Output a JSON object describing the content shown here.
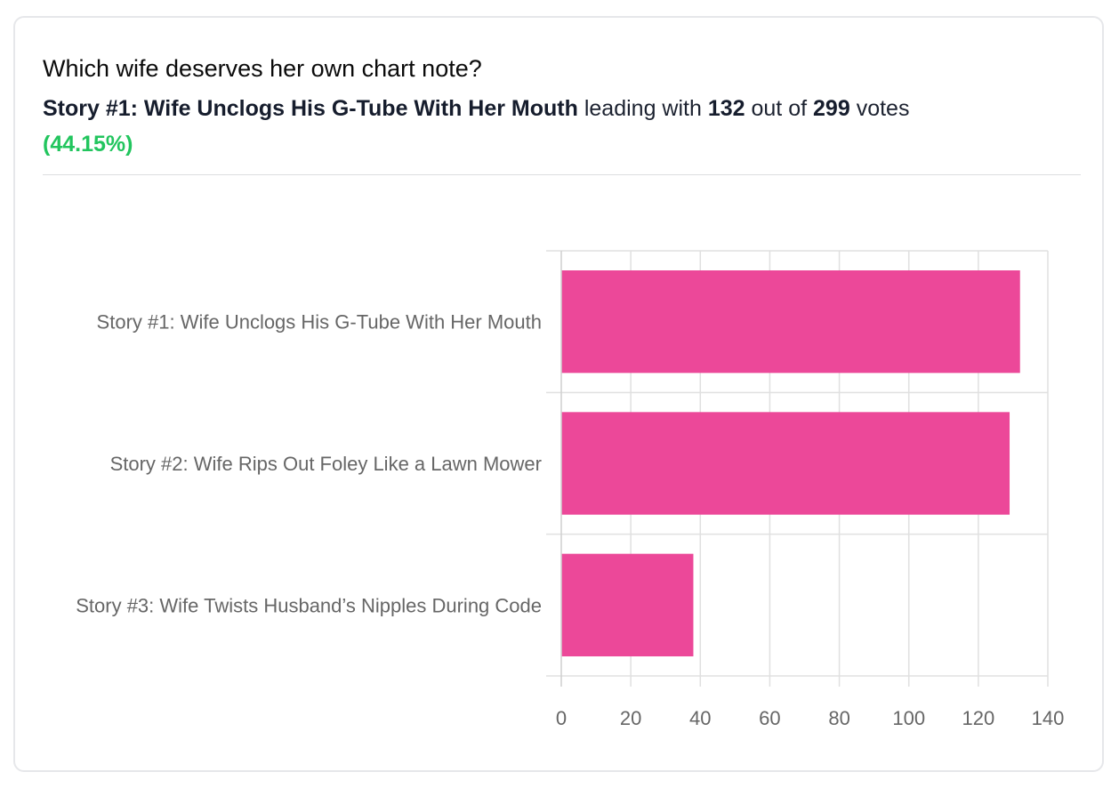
{
  "header": {
    "title": "Which wife deserves her own chart note?",
    "leader_name": "Story #1: Wife Unclogs His G-Tube With Her Mouth",
    "leading_with_text": "leading with",
    "leader_votes": "132",
    "out_of_text": "out of",
    "total_votes": "299",
    "votes_text": "votes",
    "leader_percent": "(44.15%)"
  },
  "colors": {
    "bar": "#ec4899",
    "percent": "#22c55e",
    "grid": "#e0e0e0"
  },
  "chart_data": {
    "type": "bar",
    "orientation": "horizontal",
    "categories": [
      "Story #1: Wife Unclogs His G-Tube With Her Mouth",
      "Story #2: Wife Rips Out Foley Like a Lawn Mower",
      "Story #3: Wife Twists Husband’s Nipples During Code"
    ],
    "values": [
      132,
      129,
      38
    ],
    "xlim": [
      0,
      140
    ],
    "xticks": [
      0,
      20,
      40,
      60,
      80,
      100,
      120,
      140
    ],
    "grid": true,
    "title": "",
    "xlabel": "",
    "ylabel": ""
  }
}
